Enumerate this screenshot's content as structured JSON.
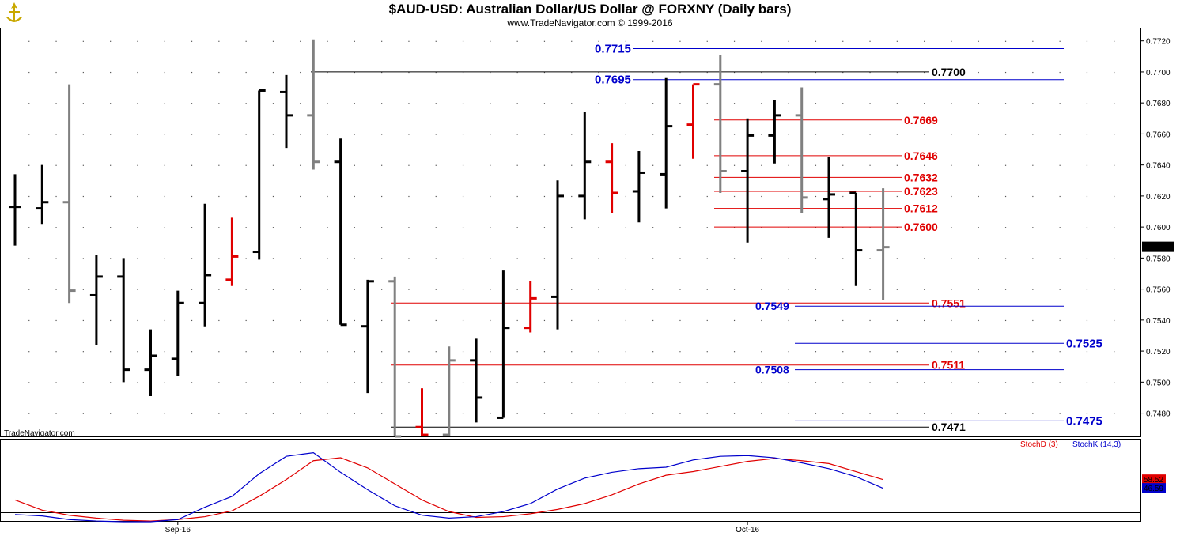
{
  "chart_data": {
    "type": "ohlc",
    "title": "$AUD-USD:  Australian Dollar/US Dollar @ FORXNY  (Daily bars)",
    "subtitle": "www.TradeNavigator.com © 1999-2016",
    "watermark": "TradeNavigator.com",
    "ylim": [
      0.7465,
      0.7728
    ],
    "y_ticks": [
      "0.7480",
      "0.7500",
      "0.7520",
      "0.7540",
      "0.7560",
      "0.7580",
      "0.7600",
      "0.7620",
      "0.7640",
      "0.7660",
      "0.7680",
      "0.7700",
      "0.7720"
    ],
    "x_labels": [
      {
        "label": "Sep-16",
        "bar": 6
      },
      {
        "label": "Oct-16",
        "bar": 27
      }
    ],
    "last_price": "0.7587",
    "colors": {
      "up": "#000000",
      "neutral": "#808080",
      "down": "#e00000",
      "fib_red": "#e00000",
      "fib_blue": "#0000cc"
    },
    "bars": [
      {
        "o": 0.7613,
        "h": 0.7634,
        "l": 0.7588,
        "c": 0.7613,
        "color": "black"
      },
      {
        "o": 0.7612,
        "h": 0.764,
        "l": 0.7602,
        "c": 0.7616,
        "color": "black"
      },
      {
        "o": 0.7616,
        "h": 0.7692,
        "l": 0.7551,
        "c": 0.7559,
        "color": "gray"
      },
      {
        "o": 0.7556,
        "h": 0.7582,
        "l": 0.7524,
        "c": 0.7568,
        "color": "black"
      },
      {
        "o": 0.7568,
        "h": 0.758,
        "l": 0.75,
        "c": 0.7508,
        "color": "black"
      },
      {
        "o": 0.7508,
        "h": 0.7534,
        "l": 0.7491,
        "c": 0.7517,
        "color": "black"
      },
      {
        "o": 0.7515,
        "h": 0.7559,
        "l": 0.7504,
        "c": 0.7551,
        "color": "black"
      },
      {
        "o": 0.7551,
        "h": 0.7615,
        "l": 0.7536,
        "c": 0.7569,
        "color": "black"
      },
      {
        "o": 0.7566,
        "h": 0.7606,
        "l": 0.7562,
        "c": 0.7581,
        "color": "red"
      },
      {
        "o": 0.7584,
        "h": 0.7688,
        "l": 0.7579,
        "c": 0.7688,
        "color": "black"
      },
      {
        "o": 0.7687,
        "h": 0.7698,
        "l": 0.7651,
        "c": 0.7672,
        "color": "black"
      },
      {
        "o": 0.7672,
        "h": 0.7721,
        "l": 0.7637,
        "c": 0.7642,
        "color": "gray"
      },
      {
        "o": 0.7642,
        "h": 0.7657,
        "l": 0.7537,
        "c": 0.7537,
        "color": "black"
      },
      {
        "o": 0.7536,
        "h": 0.7566,
        "l": 0.7493,
        "c": 0.7565,
        "color": "black"
      },
      {
        "o": 0.7565,
        "h": 0.7568,
        "l": 0.7465,
        "c": 0.7465,
        "color": "gray"
      },
      {
        "o": 0.7471,
        "h": 0.7496,
        "l": 0.7465,
        "c": 0.7466,
        "color": "red"
      },
      {
        "o": 0.7466,
        "h": 0.7523,
        "l": 0.7465,
        "c": 0.7514,
        "color": "gray"
      },
      {
        "o": 0.7514,
        "h": 0.7528,
        "l": 0.7474,
        "c": 0.749,
        "color": "black"
      },
      {
        "o": 0.7477,
        "h": 0.7572,
        "l": 0.7477,
        "c": 0.7535,
        "color": "black"
      },
      {
        "o": 0.7535,
        "h": 0.7565,
        "l": 0.7532,
        "c": 0.7554,
        "color": "red"
      },
      {
        "o": 0.7555,
        "h": 0.763,
        "l": 0.7534,
        "c": 0.762,
        "color": "black"
      },
      {
        "o": 0.762,
        "h": 0.7674,
        "l": 0.7605,
        "c": 0.7642,
        "color": "black"
      },
      {
        "o": 0.7642,
        "h": 0.7654,
        "l": 0.7609,
        "c": 0.7622,
        "color": "red"
      },
      {
        "o": 0.7623,
        "h": 0.7649,
        "l": 0.7603,
        "c": 0.7635,
        "color": "black"
      },
      {
        "o": 0.7634,
        "h": 0.7696,
        "l": 0.7612,
        "c": 0.7665,
        "color": "black"
      },
      {
        "o": 0.7666,
        "h": 0.7692,
        "l": 0.7644,
        "c": 0.7692,
        "color": "red"
      },
      {
        "o": 0.7692,
        "h": 0.7711,
        "l": 0.7622,
        "c": 0.7636,
        "color": "gray"
      },
      {
        "o": 0.7636,
        "h": 0.767,
        "l": 0.759,
        "c": 0.7659,
        "color": "black"
      },
      {
        "o": 0.7659,
        "h": 0.7682,
        "l": 0.7641,
        "c": 0.7672,
        "color": "black"
      },
      {
        "o": 0.7672,
        "h": 0.769,
        "l": 0.7609,
        "c": 0.7619,
        "color": "gray"
      },
      {
        "o": 0.7618,
        "h": 0.7645,
        "l": 0.7593,
        "c": 0.7621,
        "color": "black"
      },
      {
        "o": 0.7622,
        "h": 0.7622,
        "l": 0.7562,
        "c": 0.7585,
        "color": "black"
      },
      {
        "o": 0.7585,
        "h": 0.7625,
        "l": 0.7553,
        "c": 0.7587,
        "color": "gray"
      }
    ],
    "levels": [
      {
        "value": 0.7715,
        "label": "0.7715",
        "color": "blue",
        "from_bar": 0,
        "to_bar": 39,
        "label_pos": "mid"
      },
      {
        "value": 0.77,
        "label": "0.7700",
        "color": "black",
        "from_bar": 11,
        "to_bar": 33,
        "label_pos": "end"
      },
      {
        "value": 0.7695,
        "label": "0.7695",
        "color": "blue",
        "from_bar": 0,
        "to_bar": 39,
        "label_pos": "mid"
      },
      {
        "value": 0.7669,
        "label": "0.7669",
        "color": "red",
        "from_bar": 26,
        "to_bar": 32,
        "label_pos": "end"
      },
      {
        "value": 0.7646,
        "label": "0.7646",
        "color": "red",
        "from_bar": 26,
        "to_bar": 32,
        "label_pos": "end"
      },
      {
        "value": 0.7632,
        "label": "0.7632",
        "color": "red",
        "from_bar": 26,
        "to_bar": 32,
        "label_pos": "end"
      },
      {
        "value": 0.7623,
        "label": "0.7623",
        "color": "red",
        "from_bar": 26,
        "to_bar": 32,
        "label_pos": "end"
      },
      {
        "value": 0.7612,
        "label": "0.7612",
        "color": "red",
        "from_bar": 26,
        "to_bar": 32,
        "label_pos": "end"
      },
      {
        "value": 0.76,
        "label": "0.7600",
        "color": "red",
        "from_bar": 26,
        "to_bar": 32,
        "label_pos": "end"
      },
      {
        "value": 0.7551,
        "label": "0.7551",
        "color": "red",
        "from_bar": 14,
        "to_bar": 33,
        "label_pos": "end"
      },
      {
        "value": 0.7549,
        "label": "0.7549",
        "color": "blue",
        "from_bar": 27,
        "to_bar": 39,
        "label_pos": "start"
      },
      {
        "value": 0.7525,
        "label": "0.7525",
        "color": "blue",
        "from_bar": 29,
        "to_bar": 39,
        "label_pos": "after"
      },
      {
        "value": 0.7511,
        "label": "0.7511",
        "color": "red",
        "from_bar": 14,
        "to_bar": 33,
        "label_pos": "end"
      },
      {
        "value": 0.7508,
        "label": "0.7508",
        "color": "blue",
        "from_bar": 27,
        "to_bar": 39,
        "label_pos": "start"
      },
      {
        "value": 0.7475,
        "label": "0.7475",
        "color": "blue",
        "from_bar": 29,
        "to_bar": 39,
        "label_pos": "after"
      },
      {
        "value": 0.7471,
        "label": "0.7471",
        "color": "black",
        "from_bar": 14,
        "to_bar": 33,
        "label_pos": "end"
      }
    ],
    "stochastic": {
      "legend_d": "StochD (3)",
      "legend_k": "StochK (14,3)",
      "d_last": "58.52",
      "k_last": "46.59",
      "ylim": [
        0,
        100
      ],
      "stoch_d": [
        30,
        16,
        9,
        5,
        2,
        1,
        3,
        7,
        15,
        35,
        58,
        84,
        88,
        74,
        52,
        30,
        14,
        6,
        7,
        11,
        17,
        25,
        37,
        52,
        64,
        69,
        76,
        83,
        87,
        84,
        80,
        69,
        58
      ],
      "stoch_k": [
        10,
        8,
        3,
        1,
        0,
        0,
        3,
        20,
        35,
        66,
        90,
        95,
        68,
        44,
        22,
        9,
        5,
        7,
        14,
        25,
        45,
        60,
        68,
        73,
        75,
        85,
        90,
        91,
        88,
        81,
        73,
        62,
        46
      ]
    }
  }
}
